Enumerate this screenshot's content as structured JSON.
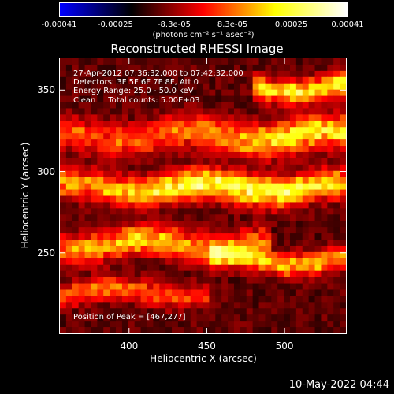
{
  "colorbar": {
    "tick_labels": [
      "-0.00041",
      "-0.00025",
      "-8.3e-05",
      "8.3e-05",
      "0.00025",
      "0.00041"
    ],
    "tick_values": [
      -0.00041,
      -0.00025,
      -8.3e-05,
      8.3e-05,
      0.00025,
      0.00041
    ],
    "range": [
      -0.00041,
      0.00041
    ],
    "unit_label": "(photons cm⁻² s⁻¹ asec⁻²)",
    "colors": [
      "#0000ff",
      "#000000",
      "#ff0000",
      "#ffff00",
      "#ffffff"
    ]
  },
  "annotations": {
    "line1": "27-Apr-2012 07:36:32.000 to 07:42:32.000",
    "line2": "Detectors: 3F 5F 6F 7F 8F, Att 0",
    "line3": "Energy Range: 25.0 - 50.0 keV",
    "line4": "Clean     Total counts: 5.00E+03",
    "peak": "Position of Peak = [467,277]"
  },
  "footer": {
    "timestamp": "10-May-2022 04:44"
  },
  "chart_data": {
    "type": "heatmap",
    "title": "Reconstructed RHESSI Image",
    "xlabel": "Heliocentric X (arcsec)",
    "ylabel": "Heliocentric Y (arcsec)",
    "xlim": [
      355,
      540
    ],
    "ylim": [
      200,
      370
    ],
    "x_ticks": [
      400,
      450,
      500
    ],
    "y_ticks": [
      250,
      300,
      350
    ],
    "peak": {
      "x": 467,
      "y": 277
    },
    "bands": [
      {
        "x0": 355,
        "x1": 540,
        "yc": 322,
        "width": 10,
        "amp": 0.00033,
        "peakx": 520
      },
      {
        "x0": 355,
        "x1": 540,
        "yc": 290,
        "width": 9,
        "amp": 0.00041,
        "peakx": 467
      },
      {
        "x0": 355,
        "x1": 480,
        "yc": 255,
        "width": 9,
        "amp": 0.0003,
        "peakx": 410
      },
      {
        "x0": 460,
        "x1": 540,
        "yc": 245,
        "width": 7,
        "amp": 0.00028,
        "peakx": 505
      },
      {
        "x0": 490,
        "x1": 540,
        "yc": 352,
        "width": 7,
        "amp": 0.00035,
        "peakx": 525
      },
      {
        "x0": 355,
        "x1": 440,
        "yc": 225,
        "width": 7,
        "amp": 0.00022,
        "peakx": 380
      }
    ]
  }
}
